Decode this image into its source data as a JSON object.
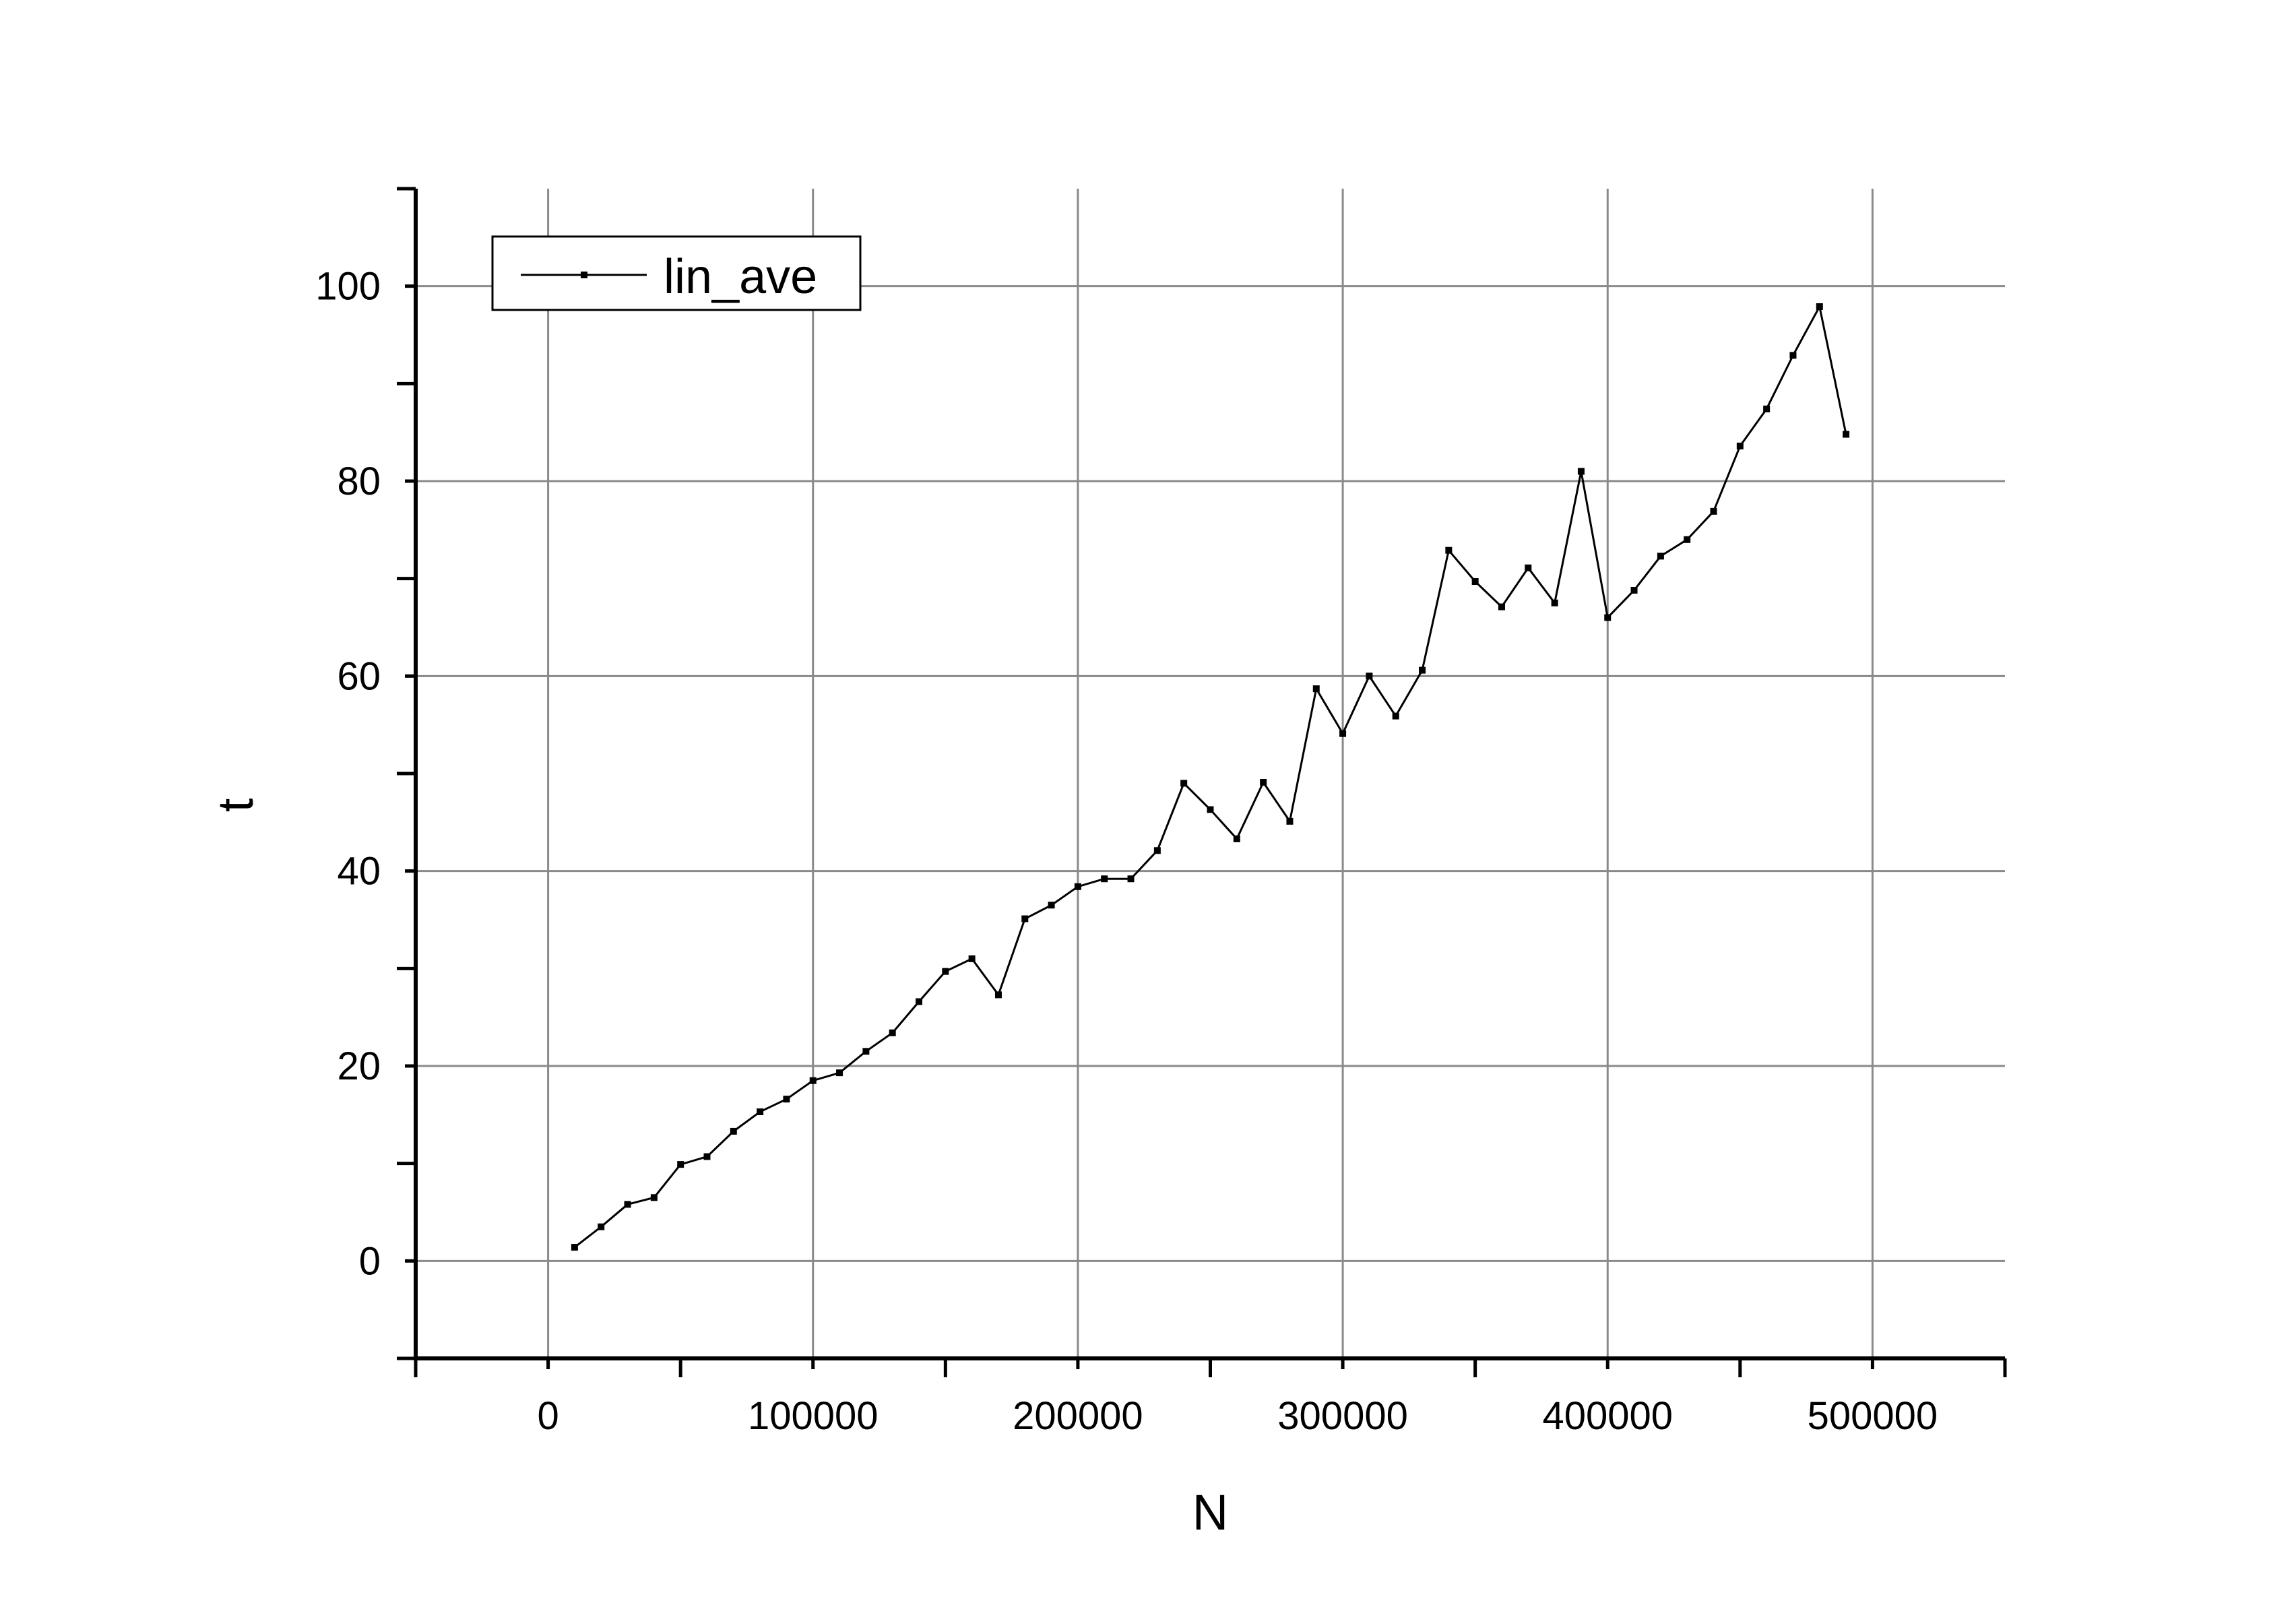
{
  "chart_data": {
    "type": "line",
    "title": "",
    "xlabel": "N",
    "ylabel": "t",
    "xlim": [
      -50000,
      550000
    ],
    "ylim": [
      -10,
      110
    ],
    "x_ticks_major": [
      0,
      100000,
      200000,
      300000,
      400000,
      500000
    ],
    "x_tick_labels": [
      "0",
      "100000",
      "200000",
      "300000",
      "400000",
      "500000"
    ],
    "y_ticks_major": [
      0,
      20,
      40,
      60,
      80,
      100
    ],
    "y_tick_labels": [
      "0",
      "20",
      "40",
      "60",
      "80",
      "100"
    ],
    "grid": true,
    "legend": {
      "position": "top-left"
    },
    "series": [
      {
        "name": "lin_ave",
        "color": "#000000",
        "marker": "square",
        "x": [
          10000,
          20000,
          30000,
          40000,
          50000,
          60000,
          70000,
          80000,
          90000,
          100000,
          110000,
          120000,
          130000,
          140000,
          150000,
          160000,
          170000,
          180000,
          190000,
          200000,
          210000,
          220000,
          230000,
          240000,
          250000,
          260000,
          270000,
          280000,
          290000,
          300000,
          310000,
          320000,
          330000,
          340000,
          350000,
          360000,
          370000,
          380000,
          390000,
          400000,
          410000,
          420000,
          430000,
          440000,
          450000,
          460000,
          470000,
          480000,
          490000
        ],
        "y": [
          1.4,
          3.5,
          5.8,
          6.5,
          9.9,
          10.7,
          13.3,
          15.3,
          16.6,
          18.5,
          19.3,
          21.5,
          23.4,
          26.6,
          29.7,
          31.0,
          27.3,
          35.1,
          36.5,
          38.4,
          39.2,
          39.2,
          42.1,
          49.0,
          46.3,
          43.3,
          49.1,
          45.1,
          58.7,
          54.1,
          60.0,
          55.9,
          60.6,
          72.9,
          69.7,
          67.1,
          71.1,
          67.5,
          81.0,
          66.0,
          68.8,
          72.3,
          74.0,
          76.9,
          83.6,
          87.4,
          92.9,
          97.9,
          84.8
        ]
      }
    ]
  }
}
